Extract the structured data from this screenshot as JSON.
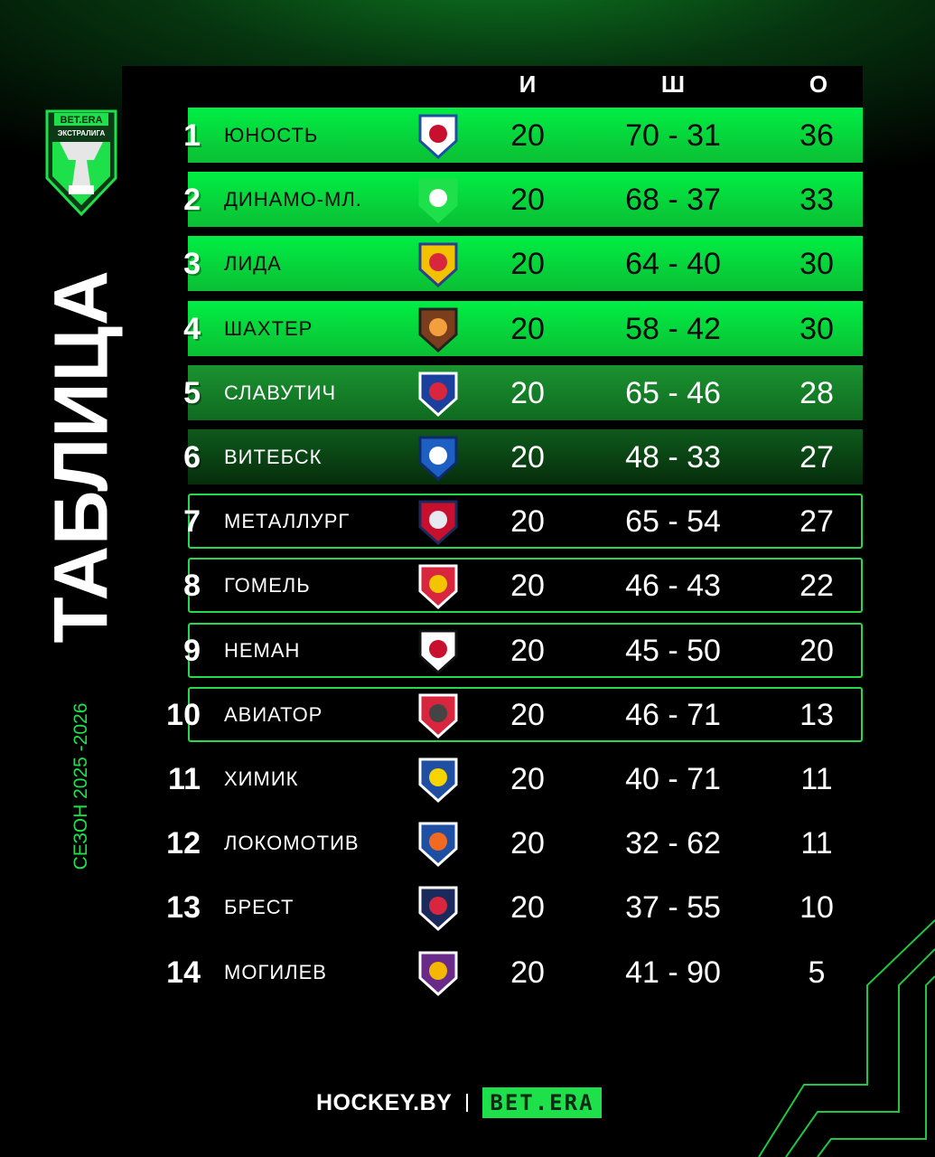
{
  "league_logo": {
    "brand": "BET.ERA",
    "league": "ЭКСТРАЛИГА"
  },
  "title": "ТАБЛИЦА",
  "season": "СЕЗОН 2025 -2026",
  "columns": {
    "games": "И",
    "goals": "Ш",
    "points": "О"
  },
  "colors": {
    "accent": "#1ee04a",
    "highlight_top": "#00ee44"
  },
  "rows": [
    {
      "rank": "1",
      "team": "ЮНОСТЬ",
      "logo": "yunost-logo",
      "games": "20",
      "goals": "70 - 31",
      "points": "36"
    },
    {
      "rank": "2",
      "team": "ДИНАМО-МЛ.",
      "logo": "dinamo-ml-logo",
      "games": "20",
      "goals": "68 - 37",
      "points": "33"
    },
    {
      "rank": "3",
      "team": "ЛИДА",
      "logo": "lida-logo",
      "games": "20",
      "goals": "64 - 40",
      "points": "30"
    },
    {
      "rank": "4",
      "team": "ШАХТЕР",
      "logo": "shakhter-logo",
      "games": "20",
      "goals": "58 - 42",
      "points": "30"
    },
    {
      "rank": "5",
      "team": "СЛАВУТИЧ",
      "logo": "slavutich-logo",
      "games": "20",
      "goals": "65 - 46",
      "points": "28"
    },
    {
      "rank": "6",
      "team": "ВИТЕБСК",
      "logo": "vitebsk-logo",
      "games": "20",
      "goals": "48 - 33",
      "points": "27"
    },
    {
      "rank": "7",
      "team": "МЕТАЛЛУРГ",
      "logo": "metallurg-logo",
      "games": "20",
      "goals": "65 - 54",
      "points": "27"
    },
    {
      "rank": "8",
      "team": "ГОМЕЛЬ",
      "logo": "gomel-logo",
      "games": "20",
      "goals": "46 - 43",
      "points": "22"
    },
    {
      "rank": "9",
      "team": "НЕМАН",
      "logo": "neman-logo",
      "games": "20",
      "goals": "45 - 50",
      "points": "20"
    },
    {
      "rank": "10",
      "team": "АВИАТОР",
      "logo": "aviator-logo",
      "games": "20",
      "goals": "46 - 71",
      "points": "13"
    },
    {
      "rank": "11",
      "team": "ХИМИК",
      "logo": "khimik-logo",
      "games": "20",
      "goals": "40 - 71",
      "points": "11"
    },
    {
      "rank": "12",
      "team": "ЛОКОМОТИВ",
      "logo": "lokomotiv-logo",
      "games": "20",
      "goals": "32 - 62",
      "points": "11"
    },
    {
      "rank": "13",
      "team": "БРЕСТ",
      "logo": "brest-logo",
      "games": "20",
      "goals": "37 - 55",
      "points": "10"
    },
    {
      "rank": "14",
      "team": "МОГИЛЕВ",
      "logo": "mogilev-logo",
      "games": "20",
      "goals": "41 - 90",
      "points": "5"
    }
  ],
  "footer": {
    "site": "HOCKEY.BY",
    "sponsor": "BET.ERA"
  }
}
